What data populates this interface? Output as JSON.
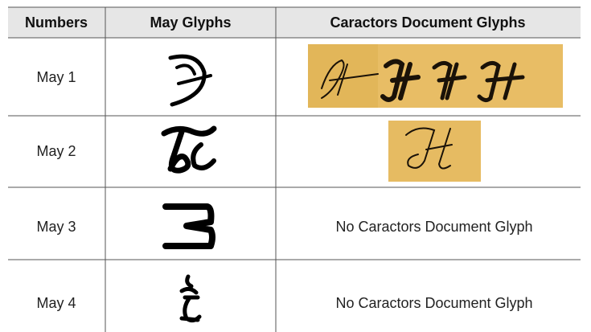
{
  "table": {
    "header": [
      "Numbers",
      "May Glyphs",
      "Caractors Document Glyphs"
    ],
    "rows": [
      {
        "number": "May 1"
      },
      {
        "number": "May 2"
      },
      {
        "number": "May 3",
        "caractors": "No Caractors Document Glyph"
      },
      {
        "number": "May 4",
        "caractors": "No Caractors Document Glyph"
      }
    ]
  }
}
